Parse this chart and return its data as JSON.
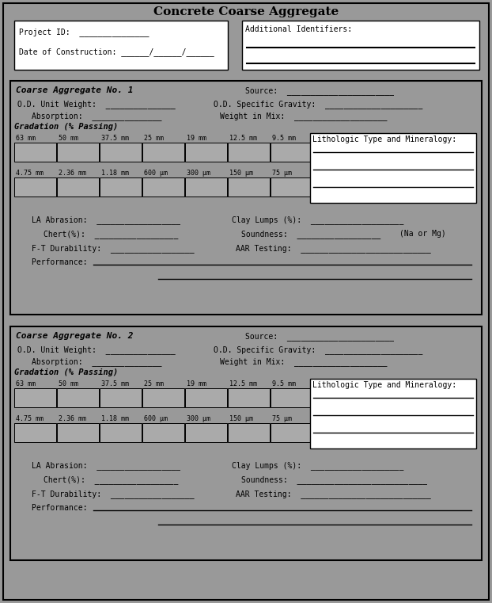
{
  "title": "Concrete Coarse Aggregate",
  "bg_color": "#999999",
  "white": "#ffffff",
  "black": "#000000",
  "cell_gray": "#aaaaaa",
  "project_id_label": "Project ID:  _______________",
  "date_label": "Date of Construction: ______/______/______",
  "additional_id_label": "Additional Identifiers:",
  "agg1_header": "Coarse Aggregate No. 1",
  "agg2_header": "Coarse Aggregate No. 2",
  "source_label": "Source:  _______________________",
  "od_unit_weight": "O.D. Unit Weight:  _______________",
  "od_specific_gravity": "O.D. Specific Gravity:  _____________________",
  "absorption": "Absorption:  _______________",
  "weight_in_mix": "Weight in Mix:  ____________________",
  "gradation_label": "Gradation (% Passing)",
  "sieve_sizes_top": [
    "63 mm",
    "50 mm",
    "37.5 mm",
    "25 mm",
    "19 mm",
    "12.5 mm",
    "9.5 mm"
  ],
  "sieve_sizes_bot": [
    "4.75 mm",
    "2.36 mm",
    "1.18 mm",
    "600 μm",
    "300 μm",
    "150 μm",
    "75 μm"
  ],
  "litho_label": "Lithologic Type and Mineralogy:",
  "la_abrasion": "LA Abrasion:  __________________",
  "clay_lumps": "Clay Lumps (%):  ____________________",
  "chert": "Chert(%):  __________________",
  "soundness_1_a": "Soundness:  __________________",
  "soundness_1_b": "(Na or Mg)",
  "soundness_2": "Soundness:  ____________________________",
  "ft_durability": "F-T Durability:  __________________",
  "aar_testing": "AAR Testing:  ____________________________",
  "performance": "Performance:  "
}
